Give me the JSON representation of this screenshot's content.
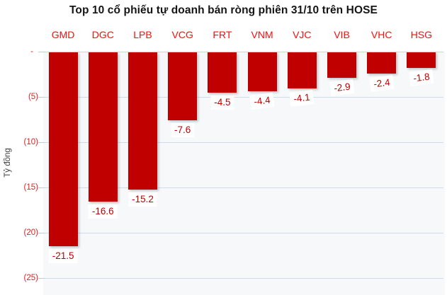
{
  "chart_data": {
    "type": "bar",
    "orientation": "vertical",
    "title": "Top 10 cổ phiếu tự doanh bán ròng phiên 31/10 trên HOSE",
    "ylabel": "Tỷ đồng",
    "xlabel": "",
    "categories": [
      "GMD",
      "DGC",
      "LPB",
      "VCG",
      "FRT",
      "VNM",
      "VJC",
      "VIB",
      "VHC",
      "HSG"
    ],
    "values": [
      -21.5,
      -16.6,
      -15.2,
      -7.6,
      -4.5,
      -4.4,
      -4.1,
      -2.9,
      -2.4,
      -1.8
    ],
    "data_labels": [
      "-21.5",
      "-16.6",
      "-15.2",
      "-7.6",
      "-4.5",
      "-4.4",
      "-4.1",
      "-2.9",
      "-2.4",
      "-1.8"
    ],
    "ylim": [
      -25,
      0
    ],
    "ytick_step": 5,
    "ytick_labels": [
      "-",
      "(5)",
      "(10)",
      "(15)",
      "(20)",
      "(25)"
    ],
    "grid": "horizontal",
    "legend": "none",
    "tilted_label_indices": [
      5,
      6,
      7,
      8,
      9
    ],
    "colors": {
      "bar_fill": "#c00000",
      "category_label": "#fb0d0d",
      "value_label": "#c00000",
      "ytick_label": "#e02020",
      "gridline": "#ccdcee",
      "plot_background": "#f7f8fa",
      "title_text": "#151515",
      "axis_title_text": "#3f3f3f"
    }
  }
}
